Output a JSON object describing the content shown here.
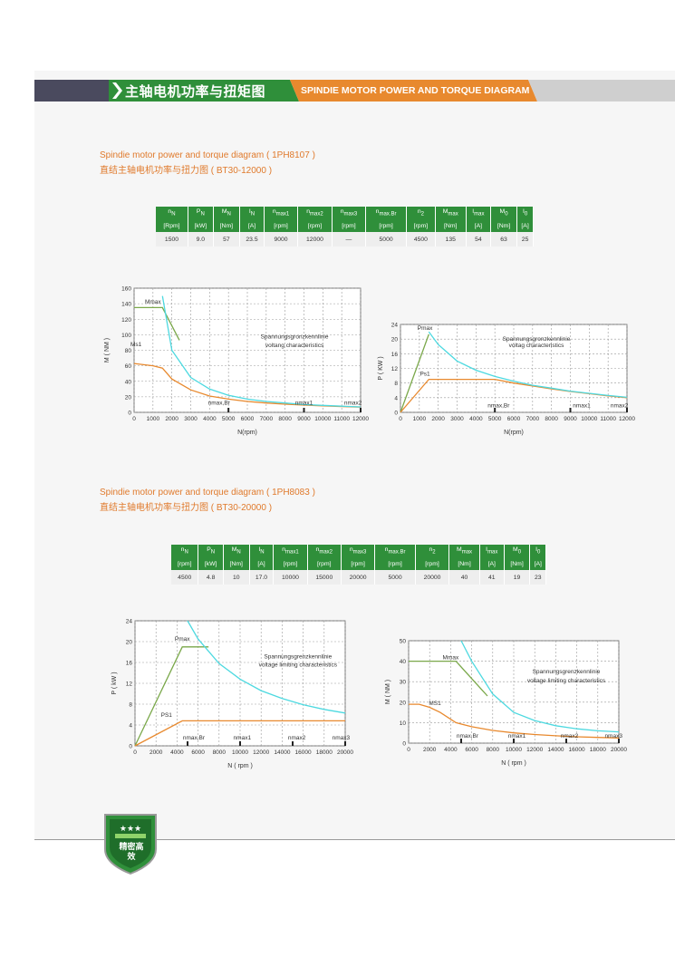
{
  "header": {
    "title_cn": "主轴电机功率与扭矩图",
    "title_en": "SPINDIE MOTOR POWER AND TORQUE DIAGRAM"
  },
  "section1": {
    "title_en": "Spindie motor power and torque diagram ( 1PH8107 )",
    "title_cn": "直结主轴电机功率与扭力图 ( BT30-12000 )",
    "columns": [
      {
        "sym": "n",
        "sub": "N",
        "unit": "[Rpm]",
        "value": "1500"
      },
      {
        "sym": "P",
        "sub": "N",
        "unit": "[kW]",
        "value": "9.0"
      },
      {
        "sym": "M",
        "sub": "N",
        "unit": "[Nm]",
        "value": "57"
      },
      {
        "sym": "I",
        "sub": "N",
        "unit": "[A]",
        "value": "23.5"
      },
      {
        "sym": "n",
        "sub": "max1",
        "unit": "[rpm]",
        "value": "9000"
      },
      {
        "sym": "n",
        "sub": "max2",
        "unit": "[rpm]",
        "value": "12000"
      },
      {
        "sym": "n",
        "sub": "max3",
        "unit": "[rpm]",
        "value": "—"
      },
      {
        "sym": "n",
        "sub": "max.Br",
        "unit": "[rpm]",
        "value": "5000"
      },
      {
        "sym": "n",
        "sub": "2",
        "unit": "[rpm]",
        "value": "4500"
      },
      {
        "sym": "M",
        "sub": "max",
        "unit": "[Nm]",
        "value": "135"
      },
      {
        "sym": "I",
        "sub": "max",
        "unit": "[A]",
        "value": "54"
      },
      {
        "sym": "M",
        "sub": "0",
        "unit": "[Nm]",
        "value": "63"
      },
      {
        "sym": "I",
        "sub": "0",
        "unit": "[A]",
        "value": "25"
      }
    ]
  },
  "section2": {
    "title_en": "Spindie motor power and torque diagram ( 1PH8083 )",
    "title_cn": "直结主轴电机功率与扭力图 ( BT30-20000 )",
    "columns": [
      {
        "sym": "n",
        "sub": "N",
        "unit": "[rpm]",
        "value": "4500"
      },
      {
        "sym": "P",
        "sub": "N",
        "unit": "[kW]",
        "value": "4.8"
      },
      {
        "sym": "M",
        "sub": "N",
        "unit": "[Nm]",
        "value": "10"
      },
      {
        "sym": "I",
        "sub": "N",
        "unit": "[A]",
        "value": "17.0"
      },
      {
        "sym": "n",
        "sub": "max1",
        "unit": "[rpm]",
        "value": "10000"
      },
      {
        "sym": "n",
        "sub": "max2",
        "unit": "[rpm]",
        "value": "15000"
      },
      {
        "sym": "n",
        "sub": "max3",
        "unit": "[rpm]",
        "value": "20000"
      },
      {
        "sym": "n",
        "sub": "max.Br",
        "unit": "[rpm]",
        "value": "5000"
      },
      {
        "sym": "n",
        "sub": "2",
        "unit": "[rpm]",
        "value": "20000"
      },
      {
        "sym": "M",
        "sub": "max",
        "unit": "[Nm]",
        "value": "40"
      },
      {
        "sym": "I",
        "sub": "max",
        "unit": "[A]",
        "value": "41"
      },
      {
        "sym": "M",
        "sub": "0",
        "unit": "[Nm]",
        "value": "19"
      },
      {
        "sym": "I",
        "sub": "0",
        "unit": "[A]",
        "value": "23"
      }
    ]
  },
  "colors": {
    "green": "#2f8f3a",
    "orange": "#e8892e",
    "header_dark": "#4a4a5e",
    "cyan": "#4dd9e0",
    "curve_green": "#7aa84a",
    "curve_orange": "#e8892e"
  },
  "badge": {
    "text_cn": "精密高效"
  },
  "chart_data": [
    {
      "type": "line",
      "xlabel": "N(rpm)",
      "ylabel": "M ( NM )",
      "xlim": [
        0,
        12000
      ],
      "ylim": [
        0,
        160
      ],
      "xticks": [
        0,
        1000,
        2000,
        3000,
        4000,
        5000,
        6000,
        7000,
        8000,
        9000,
        10000,
        11000,
        12000
      ],
      "yticks": [
        0,
        20,
        40,
        60,
        80,
        100,
        120,
        140,
        160
      ],
      "series": [
        {
          "name": "Mmax",
          "color": "#7aa84a",
          "x": [
            0,
            1500,
            2400
          ],
          "y": [
            135,
            135,
            93
          ]
        },
        {
          "name": "Ms1",
          "color": "#e8892e",
          "x": [
            0,
            1000,
            1500,
            2000,
            3000,
            4000,
            5000,
            6000,
            7000,
            8000,
            9000,
            10000,
            11000,
            12000
          ],
          "y": [
            63,
            60,
            57,
            43,
            29,
            21,
            17,
            14,
            12,
            10.5,
            9.3,
            8.3,
            7.5,
            6.8
          ]
        },
        {
          "name": "Spannungsgronzkennlinie voltang characteristics",
          "color": "#4dd9e0",
          "x": [
            1500,
            2000,
            3000,
            4000,
            5000,
            6000,
            7000,
            8000,
            9000,
            10000,
            11000,
            12000
          ],
          "y": [
            150,
            80,
            45,
            30,
            22,
            17,
            14,
            12,
            10,
            9,
            8,
            7
          ]
        }
      ],
      "annotations": [
        "Mmax",
        "Ms1",
        "Spannungsgronzkennlinie",
        "voltang characteristics",
        "nmax,Br",
        "nmax1",
        "nmax2"
      ]
    },
    {
      "type": "line",
      "xlabel": "N(rpm)",
      "ylabel": "P ( KW )",
      "xlim": [
        0,
        12000
      ],
      "ylim": [
        0,
        24
      ],
      "xticks": [
        0,
        1000,
        2000,
        3000,
        4000,
        5000,
        6000,
        7000,
        8000,
        9000,
        10000,
        11000,
        12000
      ],
      "yticks": [
        0,
        4,
        8,
        12,
        16,
        20,
        24
      ],
      "series": [
        {
          "name": "Pmax",
          "color": "#7aa84a",
          "x": [
            0,
            1500
          ],
          "y": [
            0,
            21.3
          ]
        },
        {
          "name": "Ps1",
          "color": "#e8892e",
          "x": [
            0,
            1500,
            5000,
            6000,
            7000,
            8000,
            9000,
            10000,
            11000,
            12000
          ],
          "y": [
            0,
            9,
            9,
            8,
            7.2,
            6.4,
            5.7,
            5.1,
            4.5,
            4
          ]
        },
        {
          "name": "Spannungsgronzkennlinie voltag characteristics",
          "color": "#4dd9e0",
          "x": [
            1500,
            2000,
            3000,
            4000,
            5000,
            6000,
            7000,
            8000,
            9000,
            10000,
            11000,
            12000
          ],
          "y": [
            22,
            18.5,
            14,
            11.5,
            9.8,
            8.5,
            7.4,
            6.6,
            5.8,
            5.2,
            4.6,
            4.1
          ]
        }
      ],
      "annotations": [
        "Pmax",
        "Ps1",
        "Spannungsgronzkennlinie",
        "voltag characteristics",
        "nmax,Br",
        "nmax1",
        "nmax2"
      ]
    },
    {
      "type": "line",
      "xlabel": "N ( rpm )",
      "ylabel": "P ( kW )",
      "xlim": [
        0,
        20000
      ],
      "ylim": [
        0,
        24
      ],
      "xticks": [
        0,
        2000,
        4000,
        6000,
        8000,
        10000,
        12000,
        14000,
        16000,
        18000,
        20000
      ],
      "yticks": [
        0,
        4,
        8,
        12,
        16,
        20,
        24
      ],
      "series": [
        {
          "name": "Pmax",
          "color": "#7aa84a",
          "x": [
            0,
            4500,
            7000
          ],
          "y": [
            0,
            19,
            19
          ]
        },
        {
          "name": "PS1",
          "color": "#e8892e",
          "x": [
            0,
            4500,
            20000
          ],
          "y": [
            0,
            4.8,
            4.8
          ]
        },
        {
          "name": "Spannungsgrenzkennlinie voltage limiting characteristics",
          "color": "#4dd9e0",
          "x": [
            5000,
            6000,
            8000,
            10000,
            12000,
            14000,
            16000,
            18000,
            20000
          ],
          "y": [
            24,
            20.5,
            15.8,
            12.8,
            10.6,
            9.1,
            7.9,
            7,
            6.3
          ]
        }
      ],
      "annotations": [
        "Pmax",
        "PS1",
        "Spannungsgrenzkennlinie",
        "voltage limiting characteristics",
        "nmax,Br",
        "nmax1",
        "nmax2",
        "nmax3"
      ]
    },
    {
      "type": "line",
      "xlabel": "N ( rpm )",
      "ylabel": "M ( NM )",
      "xlim": [
        0,
        20000
      ],
      "ylim": [
        0,
        50
      ],
      "xticks": [
        0,
        2000,
        4000,
        6000,
        8000,
        10000,
        12000,
        14000,
        16000,
        18000,
        20000
      ],
      "yticks": [
        0,
        10,
        20,
        30,
        40,
        50
      ],
      "series": [
        {
          "name": "Mmax",
          "color": "#7aa84a",
          "x": [
            0,
            4500,
            7500
          ],
          "y": [
            40,
            40,
            23
          ]
        },
        {
          "name": "MS1",
          "color": "#e8892e",
          "x": [
            0,
            1000,
            2000,
            3000,
            4500,
            6000,
            8000,
            10000,
            12000,
            14000,
            16000,
            18000,
            20000
          ],
          "y": [
            19,
            19,
            17.5,
            15,
            10,
            8,
            6.2,
            5,
            4.2,
            3.6,
            3.1,
            2.8,
            2.5
          ]
        },
        {
          "name": "Spannungsgrenzkennlinie voltage limiting characteristics",
          "color": "#4dd9e0",
          "x": [
            5000,
            6000,
            8000,
            10000,
            12000,
            14000,
            16000,
            18000,
            20000
          ],
          "y": [
            50,
            40,
            24,
            15,
            11,
            8.5,
            7,
            6,
            5.5
          ]
        }
      ],
      "annotations": [
        "Mmax",
        "MS1",
        "Spannungsgrenzkennlinie",
        "voltage limiting characteristics",
        "nmax,Br",
        "nmax1",
        "nmax2",
        "nmax3"
      ]
    }
  ]
}
